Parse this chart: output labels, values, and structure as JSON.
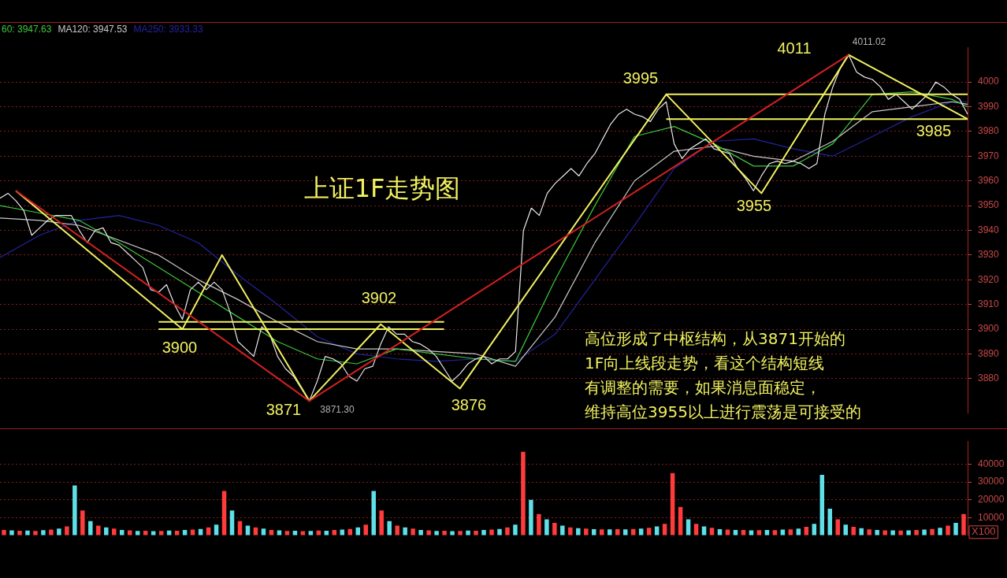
{
  "chart_data": [
    {
      "type": "line",
      "title": "上证1F走势图",
      "categories": [
        null,
        null,
        null,
        null,
        null,
        null,
        null,
        null,
        null,
        null,
        null,
        null,
        null,
        null,
        null,
        null,
        null,
        null,
        null,
        null,
        null,
        null,
        null,
        null,
        null,
        null,
        null,
        null,
        null,
        null,
        null,
        null,
        null,
        null,
        null,
        null,
        null,
        null,
        null,
        null,
        null,
        null,
        null,
        null,
        null,
        null,
        null,
        null,
        null,
        null,
        null,
        null,
        null,
        null,
        null,
        null,
        null,
        null,
        null,
        null,
        null,
        null,
        null,
        null,
        null,
        null,
        null,
        null,
        null,
        null,
        null,
        null,
        null,
        null,
        null,
        null,
        null,
        null,
        null,
        null,
        null,
        null,
        null,
        null,
        null,
        null,
        null,
        null,
        null,
        null,
        null,
        null,
        null,
        null,
        null,
        null,
        null,
        null,
        null,
        null,
        null,
        null,
        null,
        null,
        null,
        null,
        null,
        null,
        null,
        null,
        null,
        null,
        null,
        null,
        null,
        null,
        null,
        null,
        null,
        null,
        null,
        null,
        null
      ],
      "ylim": [
        3866,
        4014
      ],
      "yticks": [
        3880,
        3890,
        3900,
        3910,
        3920,
        3930,
        3940,
        3950,
        3960,
        3970,
        3980,
        3990,
        4000
      ],
      "tick_labels": "y",
      "grid": "y",
      "legend": "top left",
      "marker": "none",
      "series": [
        {
          "color": "#e8e8e8",
          "values": [
            3953,
            3955,
            3952,
            3948,
            3938,
            3941,
            3944,
            3946,
            3946,
            3946,
            3940,
            3935,
            3940,
            3941,
            3935,
            3934,
            3931,
            3928,
            3925,
            3916,
            3915,
            3918,
            3910,
            3904,
            3916,
            3919,
            3916,
            3919,
            3916,
            3907,
            3895,
            3892,
            3889,
            3901,
            3898,
            3889,
            3884,
            3881,
            3876,
            3871,
            3879,
            3889,
            3888,
            3886,
            3881,
            3879,
            3884,
            3885,
            3894,
            3901,
            3898,
            3898,
            3895,
            3894,
            3892,
            3889,
            3884,
            3879,
            3882,
            3886,
            3888,
            3889,
            3886,
            3888,
            3888,
            3891,
            3940,
            3949,
            3946,
            3955,
            3959,
            3962,
            3965,
            3962,
            3967,
            3971,
            3977,
            3983,
            3987,
            3989,
            3987,
            3986,
            3984,
            3989,
            3992,
            3975,
            3969,
            3973,
            3975,
            3977,
            3973,
            3972,
            3971,
            3965,
            3961,
            3956,
            3962,
            3967,
            3968,
            3967,
            3968,
            3967,
            3965,
            3967,
            3987,
            3998,
            4006,
            4011,
            4004,
            4002,
            4001,
            3998,
            3993,
            3995,
            3992,
            3989,
            3992,
            3995,
            4000,
            3998,
            3995,
            3993,
            3987
          ]
        },
        {
          "name": "60: 3947.63",
          "color": "#3cc83c",
          "values": [
            3950,
            null,
            null,
            null,
            null,
            3947,
            null,
            null,
            null,
            null,
            3944,
            null,
            null,
            null,
            null,
            3935,
            null,
            null,
            null,
            null,
            3925,
            null,
            null,
            null,
            null,
            3915,
            null,
            null,
            null,
            null,
            3905,
            null,
            null,
            null,
            null,
            3895,
            null,
            null,
            null,
            null,
            3888,
            null,
            null,
            null,
            null,
            3886,
            null,
            null,
            null,
            null,
            3892,
            null,
            null,
            null,
            null,
            3890,
            null,
            null,
            null,
            null,
            3888,
            null,
            null,
            null,
            null,
            3887,
            null,
            null,
            null,
            null,
            3920,
            null,
            null,
            null,
            null,
            3950,
            null,
            null,
            null,
            null,
            3978,
            null,
            null,
            null,
            null,
            3982,
            null,
            null,
            null,
            null,
            3975,
            null,
            null,
            null,
            null,
            3966,
            null,
            null,
            null,
            null,
            3966,
            null,
            null,
            null,
            null,
            3975,
            null,
            null,
            null,
            null,
            3995,
            null,
            null,
            null,
            null,
            3996,
            null,
            null,
            null,
            null,
            3993,
            null,
            3990
          ]
        },
        {
          "name": "MA120: 3947.53",
          "color": "#c8c8c8",
          "values": [
            3945,
            null,
            null,
            null,
            null,
            3944,
            null,
            null,
            null,
            null,
            3942,
            null,
            null,
            null,
            null,
            3936,
            null,
            null,
            null,
            null,
            3930,
            null,
            null,
            null,
            null,
            3920,
            null,
            null,
            null,
            null,
            3912,
            null,
            null,
            null,
            null,
            3903,
            null,
            null,
            null,
            null,
            3895,
            null,
            null,
            null,
            null,
            3892,
            null,
            null,
            null,
            null,
            3892,
            null,
            null,
            null,
            null,
            3891,
            null,
            null,
            null,
            null,
            3890,
            null,
            null,
            null,
            null,
            3885,
            null,
            null,
            null,
            null,
            3905,
            null,
            null,
            null,
            null,
            3935,
            null,
            null,
            null,
            null,
            3960,
            null,
            null,
            null,
            null,
            3972,
            null,
            null,
            null,
            null,
            3974,
            null,
            null,
            null,
            null,
            3970,
            null,
            null,
            null,
            null,
            3968,
            null,
            null,
            null,
            null,
            3976,
            null,
            null,
            null,
            null,
            3988,
            null,
            null,
            null,
            null,
            3990,
            null,
            null,
            null,
            null,
            3992,
            null,
            3991
          ]
        },
        {
          "name": "MA250: 3933.33",
          "color": "#2323a0",
          "values": [
            3929,
            null,
            null,
            null,
            null,
            3938,
            null,
            null,
            null,
            null,
            3944,
            null,
            null,
            null,
            null,
            3946,
            null,
            null,
            null,
            null,
            3942,
            null,
            null,
            null,
            null,
            3935,
            null,
            null,
            null,
            null,
            3922,
            null,
            null,
            null,
            null,
            3910,
            null,
            null,
            null,
            null,
            3897,
            null,
            null,
            null,
            null,
            3890,
            null,
            null,
            null,
            null,
            3888,
            null,
            null,
            null,
            null,
            3887,
            null,
            null,
            null,
            null,
            3888,
            null,
            null,
            null,
            null,
            3887,
            null,
            null,
            null,
            null,
            3898,
            null,
            null,
            null,
            null,
            3920,
            null,
            null,
            null,
            null,
            3942,
            null,
            null,
            null,
            null,
            3965,
            null,
            null,
            null,
            null,
            3976,
            null,
            null,
            null,
            null,
            3977,
            null,
            null,
            null,
            null,
            3973,
            null,
            null,
            null,
            null,
            3970,
            null,
            null,
            null,
            null,
            3978,
            null,
            null,
            null,
            null,
            3986,
            null,
            null,
            null,
            null,
            3992,
            null,
            3992
          ]
        },
        {
          "color": "#d02020",
          "values": [
            null,
            null,
            3956,
            null,
            null,
            null,
            null,
            null,
            null,
            null,
            null,
            null,
            null,
            null,
            null,
            null,
            null,
            null,
            null,
            null,
            null,
            null,
            null,
            null,
            null,
            null,
            null,
            null,
            null,
            null,
            null,
            null,
            null,
            null,
            null,
            null,
            null,
            null,
            null,
            3871,
            null,
            null,
            null,
            null,
            null,
            null,
            null,
            null,
            null,
            null,
            null,
            null,
            null,
            null,
            null,
            null,
            null,
            null,
            null,
            null,
            null,
            null,
            null,
            null,
            null,
            null,
            null,
            null,
            null,
            null,
            null,
            null,
            null,
            null,
            null,
            null,
            null,
            null,
            null,
            null,
            null,
            null,
            null,
            null,
            null,
            null,
            null,
            null,
            null,
            null,
            null,
            null,
            null,
            null,
            null,
            null,
            null,
            null,
            null,
            null,
            null,
            null,
            null,
            null,
            null,
            null,
            null,
            4011,
            null,
            null,
            null,
            null,
            null,
            null,
            null,
            null,
            null,
            null,
            null,
            null,
            null,
            null,
            null
          ]
        },
        {
          "color": "#f0f060",
          "values": [
            null,
            null,
            3956,
            null,
            null,
            null,
            null,
            null,
            null,
            null,
            null,
            null,
            null,
            null,
            null,
            null,
            null,
            null,
            null,
            null,
            null,
            null,
            null,
            3900,
            null,
            null,
            null,
            null,
            3930,
            null,
            null,
            null,
            null,
            null,
            null,
            null,
            null,
            null,
            null,
            3871,
            null,
            null,
            null,
            null,
            null,
            null,
            null,
            null,
            3902,
            null,
            null,
            null,
            null,
            null,
            null,
            null,
            null,
            null,
            3876,
            null,
            null,
            null,
            null,
            null,
            null,
            null,
            null,
            null,
            null,
            null,
            null,
            null,
            null,
            null,
            null,
            null,
            null,
            null,
            null,
            null,
            null,
            null,
            null,
            null,
            3995,
            null,
            null,
            null,
            null,
            null,
            null,
            null,
            null,
            null,
            null,
            null,
            3955,
            null,
            null,
            null,
            null,
            null,
            null,
            null,
            null,
            null,
            null,
            4011,
            null,
            null,
            null,
            null,
            null,
            null,
            null,
            null,
            null,
            null,
            null,
            null,
            null,
            null,
            3985
          ]
        },
        {
          "color": "#f0f060",
          "values": [
            null,
            null,
            null,
            null,
            null,
            null,
            null,
            null,
            null,
            null,
            null,
            null,
            null,
            null,
            null,
            null,
            null,
            null,
            null,
            null,
            3903,
            null,
            null,
            null,
            null,
            null,
            null,
            null,
            null,
            null,
            null,
            null,
            null,
            null,
            null,
            null,
            null,
            null,
            null,
            null,
            null,
            null,
            null,
            null,
            null,
            null,
            null,
            null,
            null,
            null,
            null,
            null,
            null,
            null,
            null,
            null,
            3903,
            null,
            null,
            null,
            null,
            null,
            null,
            null,
            null,
            null,
            null,
            null,
            null,
            null,
            null,
            null,
            null,
            null,
            null,
            null,
            null,
            null,
            null,
            null,
            null,
            null,
            null,
            null,
            null,
            null,
            null,
            null,
            null,
            null,
            null,
            null,
            null,
            null,
            null,
            null,
            null,
            null,
            null,
            null,
            null,
            null,
            null,
            null,
            null,
            null,
            null,
            null,
            null,
            null,
            null,
            null,
            null,
            null,
            null,
            null,
            null,
            null,
            null,
            null,
            null,
            null,
            null
          ]
        },
        {
          "color": "#f0f060",
          "values": [
            null,
            null,
            null,
            null,
            null,
            null,
            null,
            null,
            null,
            null,
            null,
            null,
            null,
            null,
            null,
            null,
            null,
            null,
            null,
            null,
            3900,
            null,
            null,
            null,
            null,
            null,
            null,
            null,
            null,
            null,
            null,
            null,
            null,
            null,
            null,
            null,
            null,
            null,
            null,
            null,
            null,
            null,
            null,
            null,
            null,
            null,
            null,
            null,
            null,
            null,
            null,
            null,
            null,
            null,
            null,
            null,
            3900,
            null,
            null,
            null,
            null,
            null,
            null,
            null,
            null,
            null,
            null,
            null,
            null,
            null,
            null,
            null,
            null,
            null,
            null,
            null,
            null,
            null,
            null,
            null,
            null,
            null,
            null,
            null,
            null,
            null,
            null,
            null,
            null,
            null,
            null,
            null,
            null,
            null,
            null,
            null,
            null,
            null,
            null,
            null,
            null,
            null,
            null,
            null,
            null,
            null,
            null,
            null,
            null,
            null,
            null,
            null,
            null,
            null,
            null,
            null,
            null,
            null,
            null,
            null,
            null,
            null,
            null
          ]
        },
        {
          "color": "#f0f060",
          "values": [
            null,
            null,
            null,
            null,
            null,
            null,
            null,
            null,
            null,
            null,
            null,
            null,
            null,
            null,
            null,
            null,
            null,
            null,
            null,
            null,
            null,
            null,
            null,
            null,
            null,
            null,
            null,
            null,
            null,
            null,
            null,
            null,
            null,
            null,
            null,
            null,
            null,
            null,
            null,
            null,
            null,
            null,
            null,
            null,
            null,
            null,
            null,
            null,
            null,
            null,
            null,
            null,
            null,
            null,
            null,
            null,
            null,
            null,
            null,
            null,
            null,
            null,
            null,
            null,
            null,
            null,
            null,
            null,
            null,
            null,
            null,
            null,
            null,
            null,
            null,
            null,
            null,
            null,
            null,
            null,
            null,
            null,
            null,
            null,
            3995,
            null,
            null,
            null,
            null,
            null,
            null,
            null,
            null,
            null,
            null,
            null,
            null,
            null,
            null,
            null,
            null,
            null,
            null,
            null,
            null,
            null,
            null,
            null,
            null,
            null,
            null,
            null,
            null,
            null,
            null,
            null,
            null,
            null,
            null,
            null,
            null,
            null,
            3995
          ]
        },
        {
          "color": "#f0f060",
          "values": [
            null,
            null,
            null,
            null,
            null,
            null,
            null,
            null,
            null,
            null,
            null,
            null,
            null,
            null,
            null,
            null,
            null,
            null,
            null,
            null,
            null,
            null,
            null,
            null,
            null,
            null,
            null,
            null,
            null,
            null,
            null,
            null,
            null,
            null,
            null,
            null,
            null,
            null,
            null,
            null,
            null,
            null,
            null,
            null,
            null,
            null,
            null,
            null,
            null,
            null,
            null,
            null,
            null,
            null,
            null,
            null,
            null,
            null,
            null,
            null,
            null,
            null,
            null,
            null,
            null,
            null,
            null,
            null,
            null,
            null,
            null,
            null,
            null,
            null,
            null,
            null,
            null,
            null,
            null,
            null,
            null,
            null,
            null,
            null,
            3985,
            null,
            null,
            null,
            null,
            null,
            null,
            null,
            null,
            null,
            null,
            null,
            null,
            null,
            null,
            null,
            null,
            null,
            null,
            null,
            null,
            null,
            null,
            null,
            null,
            null,
            null,
            null,
            null,
            null,
            null,
            null,
            null,
            null,
            null,
            null,
            null,
            null,
            3985
          ]
        }
      ],
      "annotations": [
        "3900",
        "3871",
        "3902",
        "3876",
        "3995",
        "3955",
        "4011",
        "3985",
        "3871.30",
        "4011.02",
        "高位形成了中枢结构，从3871开始的",
        "1F向上线段走势，看这个结构短线",
        "有调整的需要，如果消息面稳定，",
        "维持高位3955以上进行震荡是可接受的"
      ]
    },
    {
      "type": "bar",
      "categories": [
        null,
        null,
        null,
        null,
        null,
        null,
        null,
        null,
        null,
        null,
        null,
        null,
        null,
        null,
        null,
        null,
        null,
        null,
        null,
        null,
        null,
        null,
        null,
        null,
        null,
        null,
        null,
        null,
        null,
        null,
        null,
        null,
        null,
        null,
        null,
        null,
        null,
        null,
        null,
        null,
        null,
        null,
        null,
        null,
        null,
        null,
        null,
        null,
        null,
        null,
        null,
        null,
        null,
        null,
        null,
        null,
        null,
        null,
        null,
        null,
        null,
        null,
        null,
        null,
        null,
        null,
        null,
        null,
        null,
        null,
        null,
        null,
        null,
        null,
        null,
        null,
        null,
        null,
        null,
        null,
        null,
        null,
        null,
        null,
        null,
        null,
        null,
        null,
        null,
        null,
        null,
        null,
        null,
        null,
        null,
        null,
        null,
        null,
        null,
        null,
        null,
        null,
        null,
        null,
        null,
        null,
        null,
        null,
        null,
        null,
        null,
        null,
        null,
        null,
        null,
        null,
        null,
        null,
        null,
        null,
        null,
        null,
        null
      ],
      "ylim": [
        0,
        53000
      ],
      "yticks": [
        10000,
        20000,
        30000,
        40000
      ],
      "tick_labels": "y",
      "grid": "y",
      "values": [
        3000,
        2800,
        2600,
        2700,
        2500,
        2900,
        3200,
        3800,
        5000,
        28000,
        14000,
        8000,
        5500,
        4500,
        3800,
        3000,
        2800,
        2500,
        2600,
        2400,
        2500,
        2700,
        2600,
        3000,
        3200,
        3600,
        4500,
        6000,
        25000,
        14000,
        8000,
        5500,
        4500,
        3800,
        3000,
        2800,
        2500,
        2600,
        2400,
        2500,
        2700,
        2600,
        3000,
        3200,
        3600,
        4500,
        6000,
        25000,
        14000,
        8000,
        5500,
        4500,
        3800,
        3000,
        2800,
        2500,
        2600,
        2400,
        2500,
        2700,
        2600,
        3000,
        3200,
        3600,
        4500,
        6000,
        47000,
        20000,
        12000,
        9000,
        7000,
        5500,
        4500,
        4000,
        3800,
        3500,
        3400,
        3300,
        3500,
        3400,
        3600,
        3800,
        4200,
        5000,
        6500,
        35000,
        16000,
        9000,
        6500,
        5000,
        4200,
        3500,
        3200,
        3000,
        3000,
        2800,
        2900,
        3000,
        2900,
        3200,
        3400,
        3800,
        4800,
        6500,
        34000,
        15000,
        9000,
        6000,
        4800,
        4000,
        3400,
        3000,
        2800,
        2800,
        2700,
        2800,
        3000,
        3200,
        3600,
        4200,
        5500,
        7000,
        12000
      ],
      "colors": [
        "#ff3b3b",
        "#5fe0e8",
        "#ff3b3b",
        "#5fe0e8",
        "#ff3b3b",
        "#5fe0e8",
        "#ff3b3b",
        "#5fe0e8",
        "#ff3b3b",
        "#5fe0e8",
        "#ff3b3b",
        "#5fe0e8",
        "#ff3b3b",
        "#5fe0e8",
        "#ff3b3b",
        "#5fe0e8",
        "#ff3b3b",
        "#5fe0e8",
        "#ff3b3b",
        "#5fe0e8",
        "#ff3b3b",
        "#5fe0e8",
        "#ff3b3b",
        "#5fe0e8",
        "#ff3b3b",
        "#5fe0e8",
        "#ff3b3b",
        "#5fe0e8",
        "#ff3b3b",
        "#5fe0e8",
        "#ff3b3b",
        "#5fe0e8",
        "#ff3b3b",
        "#5fe0e8",
        "#ff3b3b",
        "#5fe0e8",
        "#ff3b3b",
        "#5fe0e8",
        "#ff3b3b",
        "#5fe0e8",
        "#ff3b3b",
        "#5fe0e8",
        "#ff3b3b",
        "#5fe0e8",
        "#ff3b3b",
        "#5fe0e8",
        "#ff3b3b",
        "#5fe0e8",
        "#ff3b3b",
        "#5fe0e8",
        "#ff3b3b",
        "#5fe0e8",
        "#ff3b3b",
        "#5fe0e8",
        "#ff3b3b",
        "#5fe0e8",
        "#ff3b3b",
        "#5fe0e8",
        "#ff3b3b",
        "#5fe0e8",
        "#ff3b3b",
        "#5fe0e8",
        "#ff3b3b",
        "#5fe0e8",
        "#ff3b3b",
        "#5fe0e8",
        "#ff3b3b",
        "#5fe0e8",
        "#ff3b3b",
        "#5fe0e8",
        "#ff3b3b",
        "#5fe0e8",
        "#ff3b3b",
        "#5fe0e8",
        "#ff3b3b",
        "#5fe0e8",
        "#ff3b3b",
        "#5fe0e8",
        "#ff3b3b",
        "#5fe0e8",
        "#ff3b3b",
        "#5fe0e8",
        "#ff3b3b",
        "#5fe0e8",
        "#ff3b3b",
        "#ff3b3b",
        "#ff3b3b",
        "#5fe0e8",
        "#ff3b3b",
        "#5fe0e8",
        "#ff3b3b",
        "#5fe0e8",
        "#ff3b3b",
        "#5fe0e8",
        "#ff3b3b",
        "#5fe0e8",
        "#ff3b3b",
        "#5fe0e8",
        "#ff3b3b",
        "#5fe0e8",
        "#ff3b3b",
        "#5fe0e8",
        "#ff3b3b",
        "#5fe0e8",
        "#5fe0e8",
        "#5fe0e8",
        "#ff3b3b",
        "#5fe0e8",
        "#ff3b3b",
        "#5fe0e8",
        "#ff3b3b",
        "#5fe0e8",
        "#ff3b3b",
        "#5fe0e8",
        "#ff3b3b",
        "#5fe0e8",
        "#ff3b3b",
        "#5fe0e8",
        "#ff3b3b",
        "#5fe0e8",
        "#ff3b3b",
        "#5fe0e8",
        "#ff3b3b"
      ],
      "annotations": [
        "X100"
      ]
    }
  ]
}
